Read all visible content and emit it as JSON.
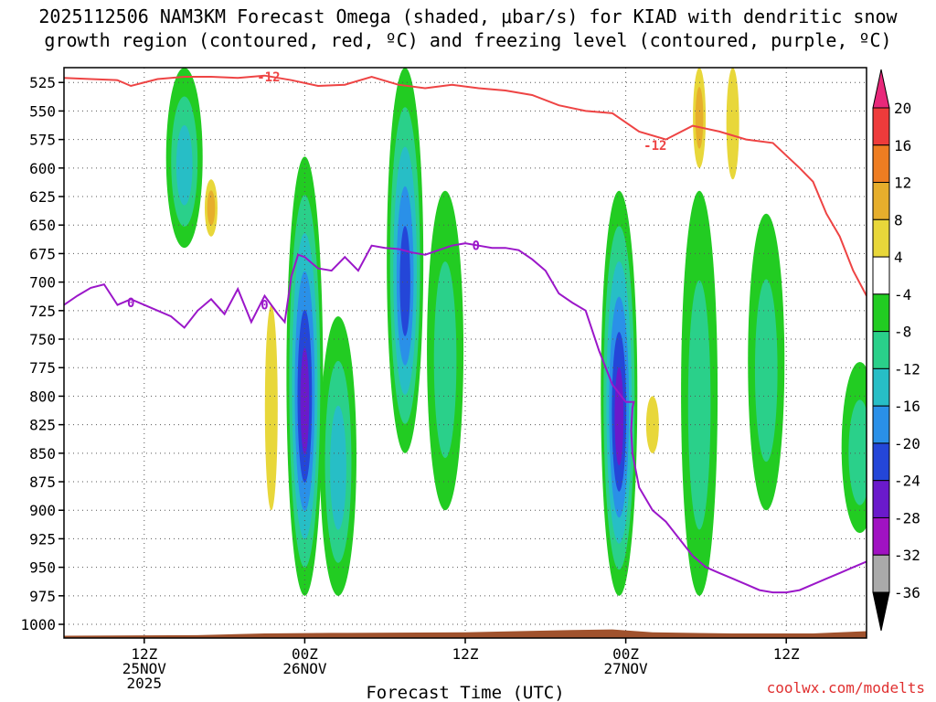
{
  "title_line1": "2025112506 NAM3KM Forecast Omega (shaded, μbar/s) for KIAD with dendritic snow",
  "title_line2": "growth region (contoured, red, ºC) and freezing level (contoured, purple, ºC)",
  "credit": "coolwx.com/modelts",
  "chart_data": {
    "type": "heatmap",
    "title": "2025112506 NAM3KM Forecast Omega (shaded, μbar/s) for KIAD with dendritic snow growth region (contoured, red, ºC) and freezing level (contoured, purple, ºC)",
    "xlabel": "Forecast Time (UTC)",
    "ylabel": "",
    "y_axis": "pressure (hPa), inverted",
    "ylim": [
      1012,
      512
    ],
    "y_ticks": [
      525,
      550,
      575,
      600,
      625,
      650,
      675,
      700,
      725,
      750,
      775,
      800,
      825,
      850,
      875,
      900,
      925,
      950,
      975,
      1000
    ],
    "xlim_forecast_hours": [
      0,
      60
    ],
    "x_ticks": [
      {
        "hour": 6,
        "label": [
          "12Z",
          "25NOV",
          "2025"
        ]
      },
      {
        "hour": 18,
        "label": [
          "00Z",
          "26NOV"
        ]
      },
      {
        "hour": 30,
        "label": [
          "12Z"
        ]
      },
      {
        "hour": 42,
        "label": [
          "00Z",
          "27NOV"
        ]
      },
      {
        "hour": 54,
        "label": [
          "12Z"
        ]
      }
    ],
    "grid": true,
    "colorbar": {
      "label_values": [
        20,
        16,
        12,
        8,
        4,
        -4,
        -8,
        -12,
        -16,
        -20,
        -24,
        -28,
        -32,
        -36
      ],
      "bins": [
        {
          "range": [
            20,
            99
          ],
          "color": "#e8287a"
        },
        {
          "range": [
            16,
            20
          ],
          "color": "#ee3b3b"
        },
        {
          "range": [
            12,
            16
          ],
          "color": "#ee7d22"
        },
        {
          "range": [
            8,
            12
          ],
          "color": "#e6ae2c"
        },
        {
          "range": [
            4,
            8
          ],
          "color": "#e8d73a"
        },
        {
          "range": [
            -4,
            4
          ],
          "color": "#ffffff"
        },
        {
          "range": [
            -8,
            -4
          ],
          "color": "#22cc22"
        },
        {
          "range": [
            -12,
            -8
          ],
          "color": "#2ad08a"
        },
        {
          "range": [
            -16,
            -12
          ],
          "color": "#27bec6"
        },
        {
          "range": [
            -20,
            -16
          ],
          "color": "#2a90e8"
        },
        {
          "range": [
            -24,
            -20
          ],
          "color": "#2446d8"
        },
        {
          "range": [
            -28,
            -24
          ],
          "color": "#6a1acb"
        },
        {
          "range": [
            -32,
            -28
          ],
          "color": "#a012c2"
        },
        {
          "range": [
            -36,
            -32
          ],
          "color": "#aaaaaa"
        },
        {
          "range": [
            -99,
            -36
          ],
          "color": "#000000"
        }
      ]
    },
    "omega_features": [
      {
        "hour": 9.0,
        "p_top": 512,
        "p_bottom": 670,
        "min": -12
      },
      {
        "hour": 18.0,
        "p_top": 590,
        "p_bottom": 975,
        "min": -26
      },
      {
        "hour": 20.5,
        "p_top": 730,
        "p_bottom": 975,
        "min": -12
      },
      {
        "hour": 25.5,
        "p_top": 512,
        "p_bottom": 850,
        "min": -22
      },
      {
        "hour": 28.5,
        "p_top": 620,
        "p_bottom": 900,
        "min": -8
      },
      {
        "hour": 41.5,
        "p_top": 620,
        "p_bottom": 975,
        "min": -26
      },
      {
        "hour": 47.5,
        "p_top": 620,
        "p_bottom": 975,
        "min": -8
      },
      {
        "hour": 52.5,
        "p_top": 640,
        "p_bottom": 900,
        "min": -8
      },
      {
        "hour": 59.5,
        "p_top": 770,
        "p_bottom": 920,
        "min": -8
      },
      {
        "hour": 11.0,
        "p_top": 610,
        "p_bottom": 660,
        "max": 8
      },
      {
        "hour": 47.5,
        "p_top": 512,
        "p_bottom": 600,
        "max": 8
      },
      {
        "hour": 50.0,
        "p_top": 512,
        "p_bottom": 610,
        "max": 6
      },
      {
        "hour": 15.5,
        "p_top": 720,
        "p_bottom": 900,
        "max": 6
      },
      {
        "hour": 44.0,
        "p_top": 800,
        "p_bottom": 850,
        "max": 6
      }
    ],
    "series": [
      {
        "name": "-12",
        "color": "#ee4444",
        "x_hours": [
          0,
          2,
          4,
          5,
          7,
          9,
          11,
          13,
          15,
          17,
          19,
          21,
          23,
          25,
          27,
          29,
          31,
          33,
          35,
          37,
          39,
          41,
          43,
          45,
          47,
          49,
          51,
          53,
          55,
          56,
          57,
          58,
          59,
          60
        ],
        "y_hpa": [
          521,
          522,
          523,
          528,
          522,
          520,
          520,
          521,
          519,
          523,
          528,
          527,
          520,
          527,
          530,
          527,
          530,
          532,
          536,
          545,
          550,
          552,
          568,
          575,
          563,
          568,
          575,
          578,
          600,
          612,
          640,
          660,
          690,
          712
        ]
      },
      {
        "name": "0",
        "color": "#9b17c9",
        "x_hours": [
          0,
          1,
          2,
          3,
          4,
          5,
          6,
          7,
          8,
          9,
          10,
          11,
          12,
          13,
          14,
          15,
          16,
          16.5,
          17,
          17.5,
          18,
          19,
          20,
          21,
          22,
          23,
          24,
          25,
          26,
          27,
          28,
          29,
          30,
          31,
          32,
          33,
          34,
          35,
          36,
          37,
          38,
          39,
          40,
          41,
          42,
          42.3,
          42.6,
          42.5,
          42.4,
          42.5,
          43,
          44,
          45,
          46,
          47,
          48,
          49,
          50,
          51,
          52,
          53,
          54,
          55,
          56,
          57,
          58,
          59,
          60
        ],
        "y_hpa": [
          720,
          712,
          705,
          702,
          720,
          715,
          720,
          725,
          730,
          740,
          725,
          715,
          728,
          706,
          735,
          712,
          728,
          735,
          695,
          676,
          678,
          688,
          690,
          678,
          690,
          668,
          670,
          671,
          674,
          676,
          672,
          668,
          666,
          668,
          670,
          670,
          672,
          680,
          690,
          710,
          718,
          725,
          760,
          790,
          805,
          805,
          805,
          810,
          830,
          850,
          880,
          900,
          910,
          925,
          940,
          950,
          955,
          960,
          965,
          970,
          972,
          972,
          970,
          965,
          960,
          955,
          950,
          945
        ]
      }
    ],
    "contour_labels": [
      {
        "text": "-12",
        "hour": 15.3,
        "p": 520,
        "color": "#ee4444"
      },
      {
        "text": "-12",
        "hour": 44.2,
        "p": 580,
        "color": "#ee4444"
      },
      {
        "text": "0",
        "hour": 5.0,
        "p": 718,
        "color": "#9b17c9"
      },
      {
        "text": "0",
        "hour": 15.0,
        "p": 720,
        "color": "#9b17c9"
      },
      {
        "text": "0",
        "hour": 30.8,
        "p": 668,
        "color": "#9b17c9"
      }
    ],
    "terrain_color": "#a0522d"
  }
}
